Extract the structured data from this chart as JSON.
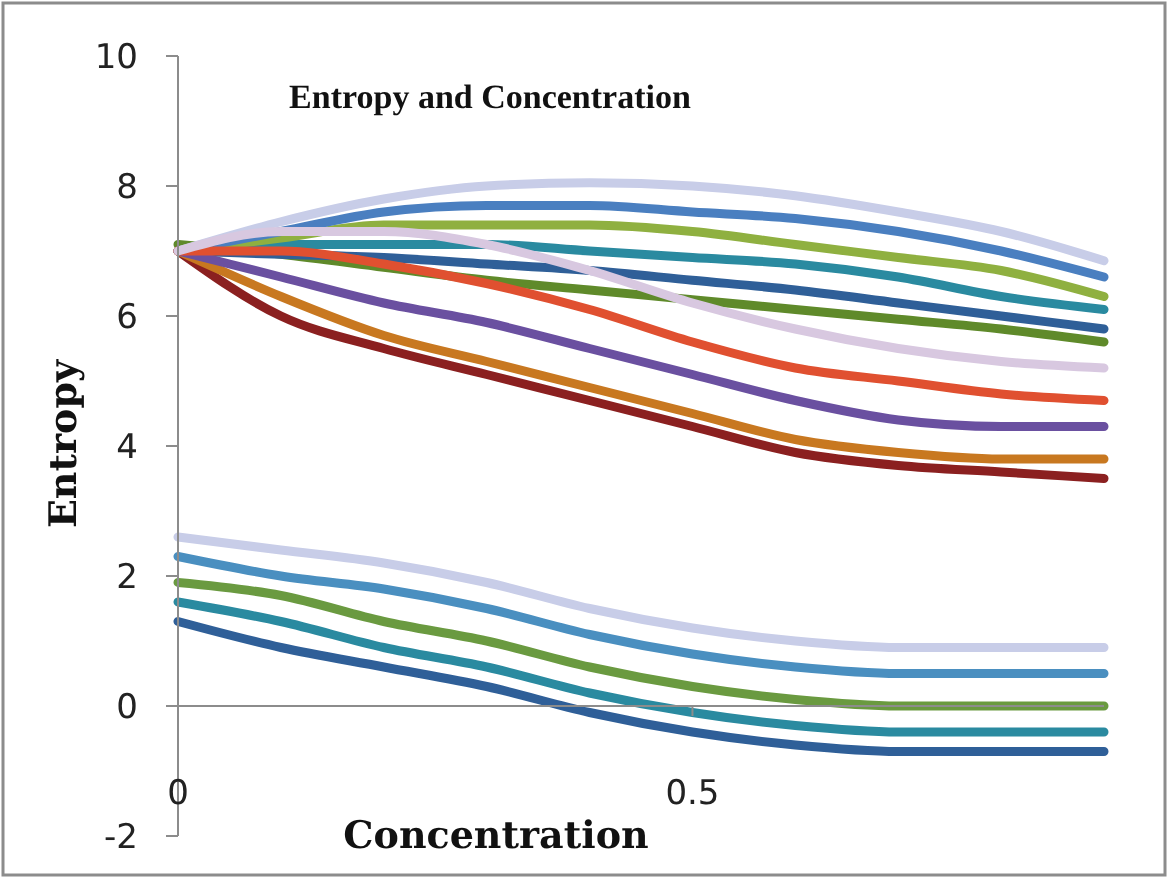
{
  "chart_data": {
    "type": "line",
    "title": "Entropy and Concentration",
    "xlabel": "Concentration",
    "ylabel": "Entropy",
    "x": [
      0,
      0.1,
      0.2,
      0.3,
      0.4,
      0.5,
      0.6,
      0.7,
      0.8,
      0.9
    ],
    "xlim": [
      0,
      0.9
    ],
    "xticks": [
      0,
      0.5
    ],
    "ylim": [
      -2,
      10
    ],
    "yticks": [
      -2,
      0,
      2,
      4,
      6,
      8,
      10
    ],
    "marker": "none",
    "line_style": "solid",
    "series": [
      {
        "color": "#5f8a2a",
        "values": [
          7.1,
          6.95,
          6.75,
          6.55,
          6.4,
          6.25,
          6.1,
          5.95,
          5.8,
          5.6
        ]
      },
      {
        "color": "#2f5f98",
        "values": [
          7.0,
          6.95,
          6.9,
          6.8,
          6.7,
          6.55,
          6.4,
          6.2,
          6.0,
          5.8
        ]
      },
      {
        "color": "#2a8aa0",
        "values": [
          7.0,
          7.1,
          7.1,
          7.1,
          7.0,
          6.9,
          6.8,
          6.6,
          6.3,
          6.1
        ]
      },
      {
        "color": "#8fb040",
        "values": [
          7.0,
          7.2,
          7.4,
          7.4,
          7.4,
          7.3,
          7.1,
          6.9,
          6.7,
          6.3
        ]
      },
      {
        "color": "#4a7fc0",
        "values": [
          7.0,
          7.3,
          7.6,
          7.7,
          7.7,
          7.6,
          7.5,
          7.3,
          7.0,
          6.6
        ]
      },
      {
        "color": "#c8cde8",
        "values": [
          7.0,
          7.45,
          7.8,
          8.0,
          8.05,
          8.0,
          7.85,
          7.6,
          7.3,
          6.85
        ]
      },
      {
        "color": "#8b2020",
        "values": [
          7.0,
          6.0,
          5.5,
          5.1,
          4.7,
          4.3,
          3.9,
          3.7,
          3.6,
          3.5
        ]
      },
      {
        "color": "#c87820",
        "values": [
          7.0,
          6.3,
          5.7,
          5.3,
          4.9,
          4.5,
          4.1,
          3.9,
          3.8,
          3.8
        ]
      },
      {
        "color": "#6a50a0",
        "values": [
          7.0,
          6.6,
          6.2,
          5.9,
          5.5,
          5.1,
          4.7,
          4.4,
          4.3,
          4.3
        ]
      },
      {
        "color": "#e05030",
        "values": [
          7.0,
          7.0,
          6.8,
          6.5,
          6.1,
          5.6,
          5.2,
          5.0,
          4.8,
          4.7
        ]
      },
      {
        "color": "#d8c8e0",
        "values": [
          7.0,
          7.3,
          7.3,
          7.1,
          6.7,
          6.2,
          5.8,
          5.5,
          5.3,
          5.2
        ]
      },
      {
        "color": "#2f5f98",
        "values": [
          1.3,
          0.9,
          0.6,
          0.3,
          -0.1,
          -0.4,
          -0.6,
          -0.7,
          -0.7,
          -0.7
        ]
      },
      {
        "color": "#2a8aa0",
        "values": [
          1.6,
          1.3,
          0.9,
          0.6,
          0.2,
          -0.1,
          -0.3,
          -0.4,
          -0.4,
          -0.4
        ]
      },
      {
        "color": "#6a9a40",
        "values": [
          1.9,
          1.7,
          1.3,
          1.0,
          0.6,
          0.3,
          0.1,
          0.0,
          0.0,
          0.0
        ]
      },
      {
        "color": "#4a8fc0",
        "values": [
          2.3,
          2.0,
          1.8,
          1.5,
          1.1,
          0.8,
          0.6,
          0.5,
          0.5,
          0.5
        ]
      },
      {
        "color": "#c8cde8",
        "values": [
          2.6,
          2.4,
          2.2,
          1.9,
          1.5,
          1.2,
          1.0,
          0.9,
          0.9,
          0.9
        ]
      }
    ]
  }
}
